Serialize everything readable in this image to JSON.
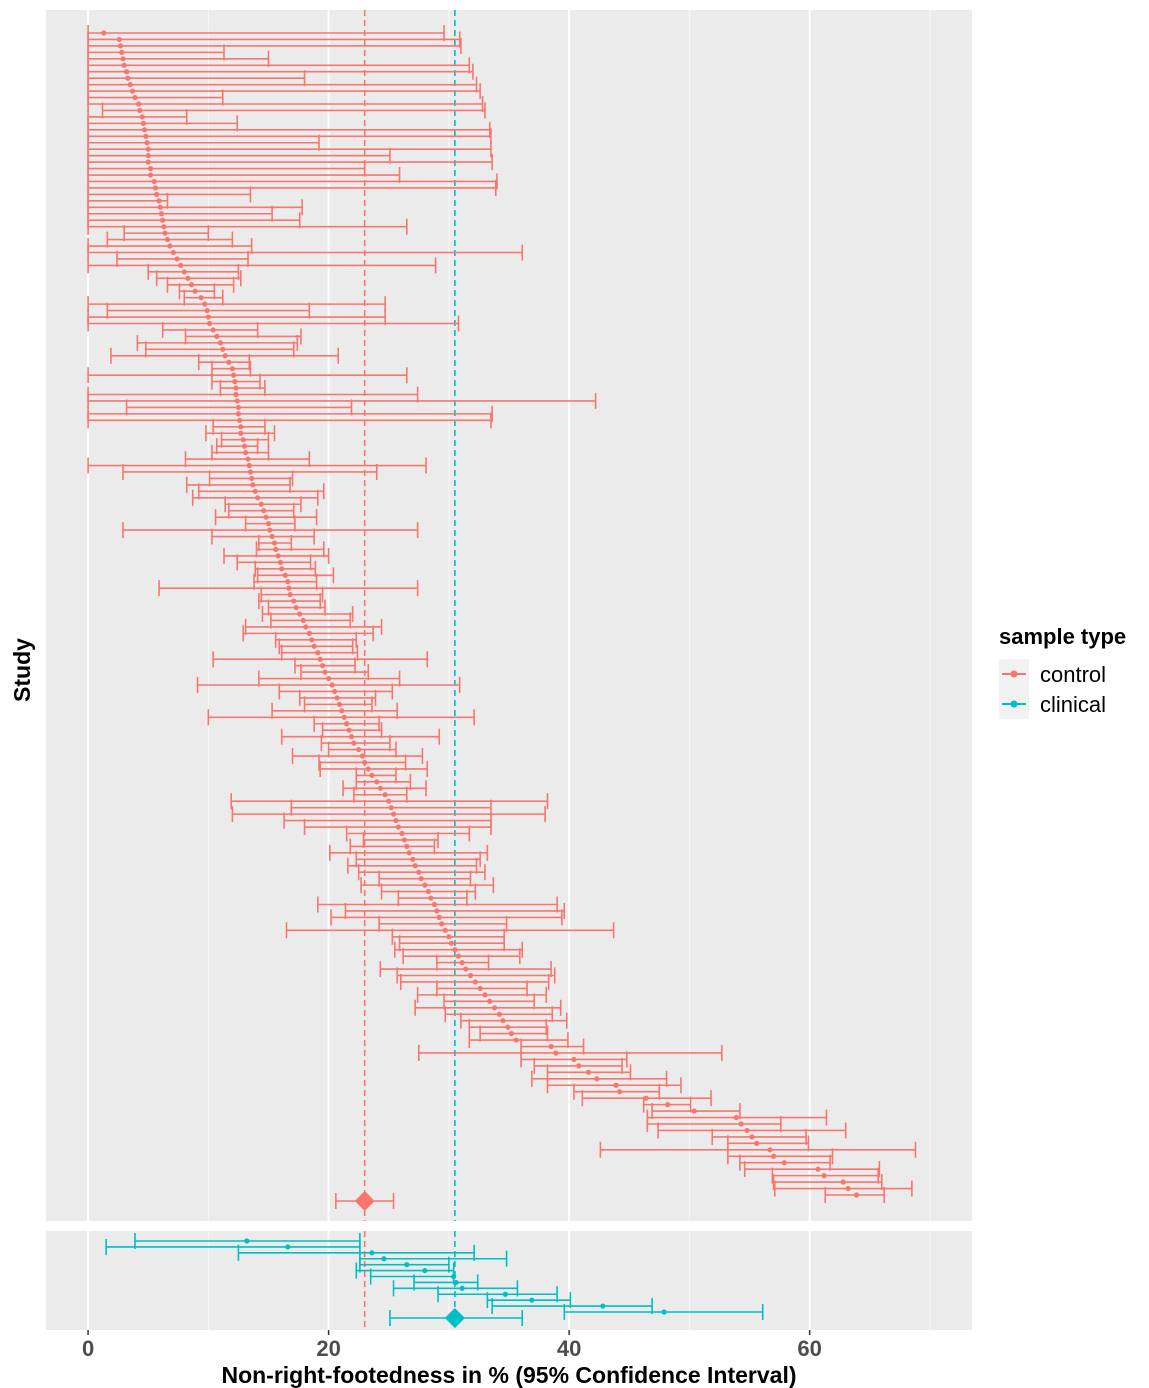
{
  "chart_data": {
    "type": "forest",
    "title": "",
    "xlabel": "Non-right-footedness in % (95% Confidence Interval)",
    "ylabel": "Study",
    "xlim": [
      -3.5,
      73.5
    ],
    "x_ticks": [
      0,
      20,
      40,
      60
    ],
    "grid": true,
    "legend": {
      "title": "sample type",
      "placement": "right",
      "entries": [
        {
          "name": "control",
          "color": "#F8766D"
        },
        {
          "name": "clinical",
          "color": "#00BFC4"
        }
      ]
    },
    "reference_lines": [
      {
        "series": "control",
        "x": 23.0,
        "color": "#F8766D"
      },
      {
        "series": "clinical",
        "x": 30.5,
        "color": "#00BFC4"
      }
    ],
    "series": [
      {
        "name": "control",
        "color": "#F8766D",
        "pooled": {
          "est": 23.0,
          "lo": 20.6,
          "hi": 25.4
        },
        "studies": [
          [
            1.3,
            0,
            29.6
          ],
          [
            2.6,
            0,
            30.9
          ],
          [
            2.7,
            0,
            31.0
          ],
          [
            2.8,
            0,
            11.3
          ],
          [
            2.9,
            0,
            15.0
          ],
          [
            3.0,
            0,
            31.7
          ],
          [
            3.2,
            0,
            32.0
          ],
          [
            3.3,
            0,
            18.0
          ],
          [
            3.5,
            0,
            32.3
          ],
          [
            3.7,
            0,
            32.6
          ],
          [
            3.9,
            0,
            11.2
          ],
          [
            4.2,
            0,
            32.8
          ],
          [
            4.3,
            1.2,
            33.0
          ],
          [
            4.5,
            0,
            8.2
          ],
          [
            4.6,
            0,
            12.4
          ],
          [
            4.7,
            0,
            33.4
          ],
          [
            4.8,
            0,
            33.5
          ],
          [
            4.9,
            0,
            19.2
          ],
          [
            5.0,
            0,
            33.5
          ],
          [
            5.0,
            0,
            25.1
          ],
          [
            5.0,
            0,
            33.6
          ],
          [
            5.2,
            0,
            23.0
          ],
          [
            5.2,
            0,
            25.9
          ],
          [
            5.5,
            0,
            34.0
          ],
          [
            5.6,
            0,
            33.9
          ],
          [
            5.7,
            0,
            13.5
          ],
          [
            5.9,
            0,
            6.6
          ],
          [
            6.0,
            0,
            17.8
          ],
          [
            6.1,
            0,
            15.3
          ],
          [
            6.2,
            0,
            17.6
          ],
          [
            6.3,
            0,
            26.5
          ],
          [
            6.4,
            3.0,
            10.0
          ],
          [
            6.6,
            1.6,
            12.0
          ],
          [
            6.8,
            0,
            13.6
          ],
          [
            7.1,
            0,
            36.1
          ],
          [
            7.4,
            2.4,
            13.3
          ],
          [
            7.7,
            0,
            28.9
          ],
          [
            8.0,
            5.0,
            12.5
          ],
          [
            8.3,
            5.7,
            12.7
          ],
          [
            8.6,
            6.6,
            12.1
          ],
          [
            8.9,
            7.6,
            10.5
          ],
          [
            9.4,
            8.0,
            11.2
          ],
          [
            9.7,
            0,
            24.7
          ],
          [
            9.9,
            1.6,
            18.4
          ],
          [
            10.0,
            0,
            24.7
          ],
          [
            10.1,
            0,
            30.8
          ],
          [
            10.4,
            6.2,
            14.1
          ],
          [
            10.7,
            8.1,
            17.7
          ],
          [
            11.0,
            4.1,
            17.4
          ],
          [
            11.2,
            4.8,
            17.1
          ],
          [
            11.4,
            1.9,
            20.8
          ],
          [
            11.7,
            9.2,
            13.4
          ],
          [
            12.0,
            10.3,
            13.5
          ],
          [
            12.1,
            0,
            26.5
          ],
          [
            12.2,
            10.3,
            14.3
          ],
          [
            12.3,
            11.0,
            14.7
          ],
          [
            12.3,
            0,
            27.4
          ],
          [
            12.4,
            0,
            42.2
          ],
          [
            12.5,
            3.2,
            21.9
          ],
          [
            12.5,
            0,
            33.6
          ],
          [
            12.6,
            0,
            33.5
          ],
          [
            12.7,
            10.4,
            14.7
          ],
          [
            12.7,
            9.8,
            15.5
          ],
          [
            12.9,
            11.1,
            15.0
          ],
          [
            13.0,
            10.7,
            14.1
          ],
          [
            13.1,
            10.3,
            15.0
          ],
          [
            13.3,
            8.1,
            18.4
          ],
          [
            13.4,
            0,
            28.1
          ],
          [
            13.5,
            2.9,
            24.0
          ],
          [
            13.6,
            10.1,
            17.0
          ],
          [
            13.7,
            8.2,
            16.8
          ],
          [
            13.9,
            9.2,
            19.6
          ],
          [
            14.1,
            8.7,
            19.1
          ],
          [
            14.4,
            11.4,
            17.7
          ],
          [
            14.6,
            11.7,
            17.1
          ],
          [
            14.8,
            10.6,
            19.0
          ],
          [
            15.0,
            13.1,
            17.2
          ],
          [
            15.1,
            2.9,
            27.4
          ],
          [
            15.3,
            10.3,
            18.8
          ],
          [
            15.5,
            14.2,
            16.9
          ],
          [
            15.6,
            14.0,
            19.6
          ],
          [
            15.8,
            11.3,
            20.0
          ],
          [
            16.0,
            12.4,
            18.5
          ],
          [
            16.1,
            13.9,
            18.9
          ],
          [
            16.4,
            14.1,
            20.4
          ],
          [
            16.6,
            13.8,
            19.0
          ],
          [
            16.7,
            5.9,
            27.4
          ],
          [
            16.8,
            14.4,
            19.5
          ],
          [
            17.1,
            14.2,
            19.3
          ],
          [
            17.3,
            15.0,
            19.7
          ],
          [
            17.6,
            14.5,
            22.0
          ],
          [
            17.9,
            15.2,
            21.8
          ],
          [
            18.1,
            13.1,
            24.4
          ],
          [
            18.4,
            12.9,
            23.7
          ],
          [
            18.6,
            15.6,
            22.3
          ],
          [
            18.8,
            15.9,
            22.0
          ],
          [
            19.1,
            16.1,
            22.4
          ],
          [
            19.3,
            10.4,
            28.2
          ],
          [
            19.5,
            17.2,
            22.2
          ],
          [
            19.7,
            17.7,
            23.3
          ],
          [
            20.0,
            14.2,
            25.9
          ],
          [
            20.3,
            9.1,
            30.9
          ],
          [
            20.5,
            15.9,
            25.3
          ],
          [
            20.7,
            17.6,
            23.9
          ],
          [
            20.9,
            18.0,
            23.6
          ],
          [
            21.1,
            15.3,
            25.7
          ],
          [
            21.3,
            10.0,
            32.1
          ],
          [
            21.5,
            18.8,
            24.2
          ],
          [
            21.7,
            19.5,
            24.4
          ],
          [
            21.9,
            16.1,
            29.2
          ],
          [
            22.1,
            19.4,
            25.1
          ],
          [
            22.5,
            20.0,
            25.6
          ],
          [
            22.8,
            17.0,
            27.8
          ],
          [
            23.0,
            19.2,
            26.4
          ],
          [
            23.3,
            19.3,
            28.2
          ],
          [
            23.6,
            22.3,
            25.6
          ],
          [
            24.0,
            22.3,
            26.8
          ],
          [
            24.3,
            21.2,
            28.1
          ],
          [
            24.7,
            22.1,
            26.5
          ],
          [
            25.0,
            11.9,
            38.2
          ],
          [
            25.2,
            16.9,
            33.5
          ],
          [
            25.4,
            12.0,
            38.0
          ],
          [
            25.6,
            16.3,
            33.5
          ],
          [
            25.8,
            18.0,
            33.5
          ],
          [
            26.1,
            21.5,
            31.7
          ],
          [
            26.3,
            22.9,
            29.1
          ],
          [
            26.5,
            21.8,
            28.8
          ],
          [
            26.7,
            20.1,
            33.2
          ],
          [
            27.0,
            22.3,
            32.6
          ],
          [
            27.2,
            21.6,
            32.3
          ],
          [
            27.5,
            22.5,
            33.0
          ],
          [
            27.7,
            24.2,
            31.8
          ],
          [
            28.0,
            22.7,
            33.7
          ],
          [
            28.3,
            24.4,
            32.2
          ],
          [
            28.5,
            25.8,
            31.5
          ],
          [
            28.8,
            19.1,
            39.0
          ],
          [
            29.0,
            21.4,
            39.6
          ],
          [
            29.2,
            20.2,
            39.4
          ],
          [
            29.4,
            24.2,
            34.8
          ],
          [
            29.7,
            16.5,
            43.7
          ],
          [
            30.0,
            25.3,
            34.6
          ],
          [
            30.2,
            25.9,
            34.6
          ],
          [
            30.5,
            25.5,
            36.1
          ],
          [
            30.8,
            26.2,
            35.9
          ],
          [
            31.1,
            29.0,
            33.3
          ],
          [
            31.4,
            24.3,
            38.5
          ],
          [
            31.8,
            25.7,
            38.8
          ],
          [
            32.2,
            26.0,
            38.3
          ],
          [
            32.6,
            29.0,
            36.5
          ],
          [
            33.0,
            27.4,
            38.1
          ],
          [
            33.4,
            29.6,
            37.1
          ],
          [
            33.8,
            27.2,
            39.3
          ],
          [
            34.2,
            29.7,
            38.6
          ],
          [
            34.5,
            31.0,
            39.8
          ],
          [
            34.9,
            31.7,
            38.1
          ],
          [
            35.2,
            32.6,
            38.2
          ],
          [
            35.6,
            31.7,
            39.9
          ],
          [
            38.5,
            36.0,
            41.2
          ],
          [
            38.9,
            27.5,
            52.7
          ],
          [
            40.4,
            36.0,
            44.8
          ],
          [
            40.8,
            37.1,
            44.4
          ],
          [
            41.6,
            38.2,
            45.1
          ],
          [
            42.3,
            36.9,
            48.1
          ],
          [
            43.9,
            38.2,
            49.3
          ],
          [
            44.2,
            40.4,
            47.5
          ],
          [
            46.4,
            41.1,
            51.8
          ],
          [
            48.2,
            46.2,
            50.1
          ],
          [
            50.4,
            46.9,
            54.2
          ],
          [
            53.9,
            46.5,
            61.4
          ],
          [
            54.3,
            46.5,
            57.6
          ],
          [
            54.8,
            47.4,
            63.0
          ],
          [
            55.2,
            51.9,
            59.7
          ],
          [
            55.6,
            53.2,
            59.9
          ],
          [
            56.7,
            42.6,
            68.8
          ],
          [
            57.0,
            53.2,
            61.9
          ],
          [
            57.9,
            54.2,
            61.7
          ],
          [
            60.7,
            54.6,
            65.8
          ],
          [
            61.2,
            56.9,
            65.7
          ],
          [
            62.8,
            57.0,
            66.0
          ],
          [
            63.2,
            57.1,
            68.5
          ],
          [
            63.9,
            61.3,
            66.2
          ]
        ]
      },
      {
        "name": "clinical",
        "color": "#00BFC4",
        "pooled": {
          "est": 30.5,
          "lo": 25.1,
          "hi": 36.1
        },
        "studies": [
          [
            13.2,
            3.9,
            22.6
          ],
          [
            16.6,
            1.5,
            22.6
          ],
          [
            23.6,
            12.5,
            32.1
          ],
          [
            24.6,
            22.6,
            34.8
          ],
          [
            26.5,
            22.6,
            30.0
          ],
          [
            28.0,
            22.3,
            30.4
          ],
          [
            30.4,
            23.5,
            30.4
          ],
          [
            30.6,
            27.1,
            32.4
          ],
          [
            31.1,
            25.4,
            35.7
          ],
          [
            34.7,
            29.1,
            39.0
          ],
          [
            36.9,
            33.2,
            40.1
          ],
          [
            42.8,
            33.6,
            46.9
          ],
          [
            47.9,
            39.6,
            56.1
          ]
        ]
      }
    ]
  }
}
